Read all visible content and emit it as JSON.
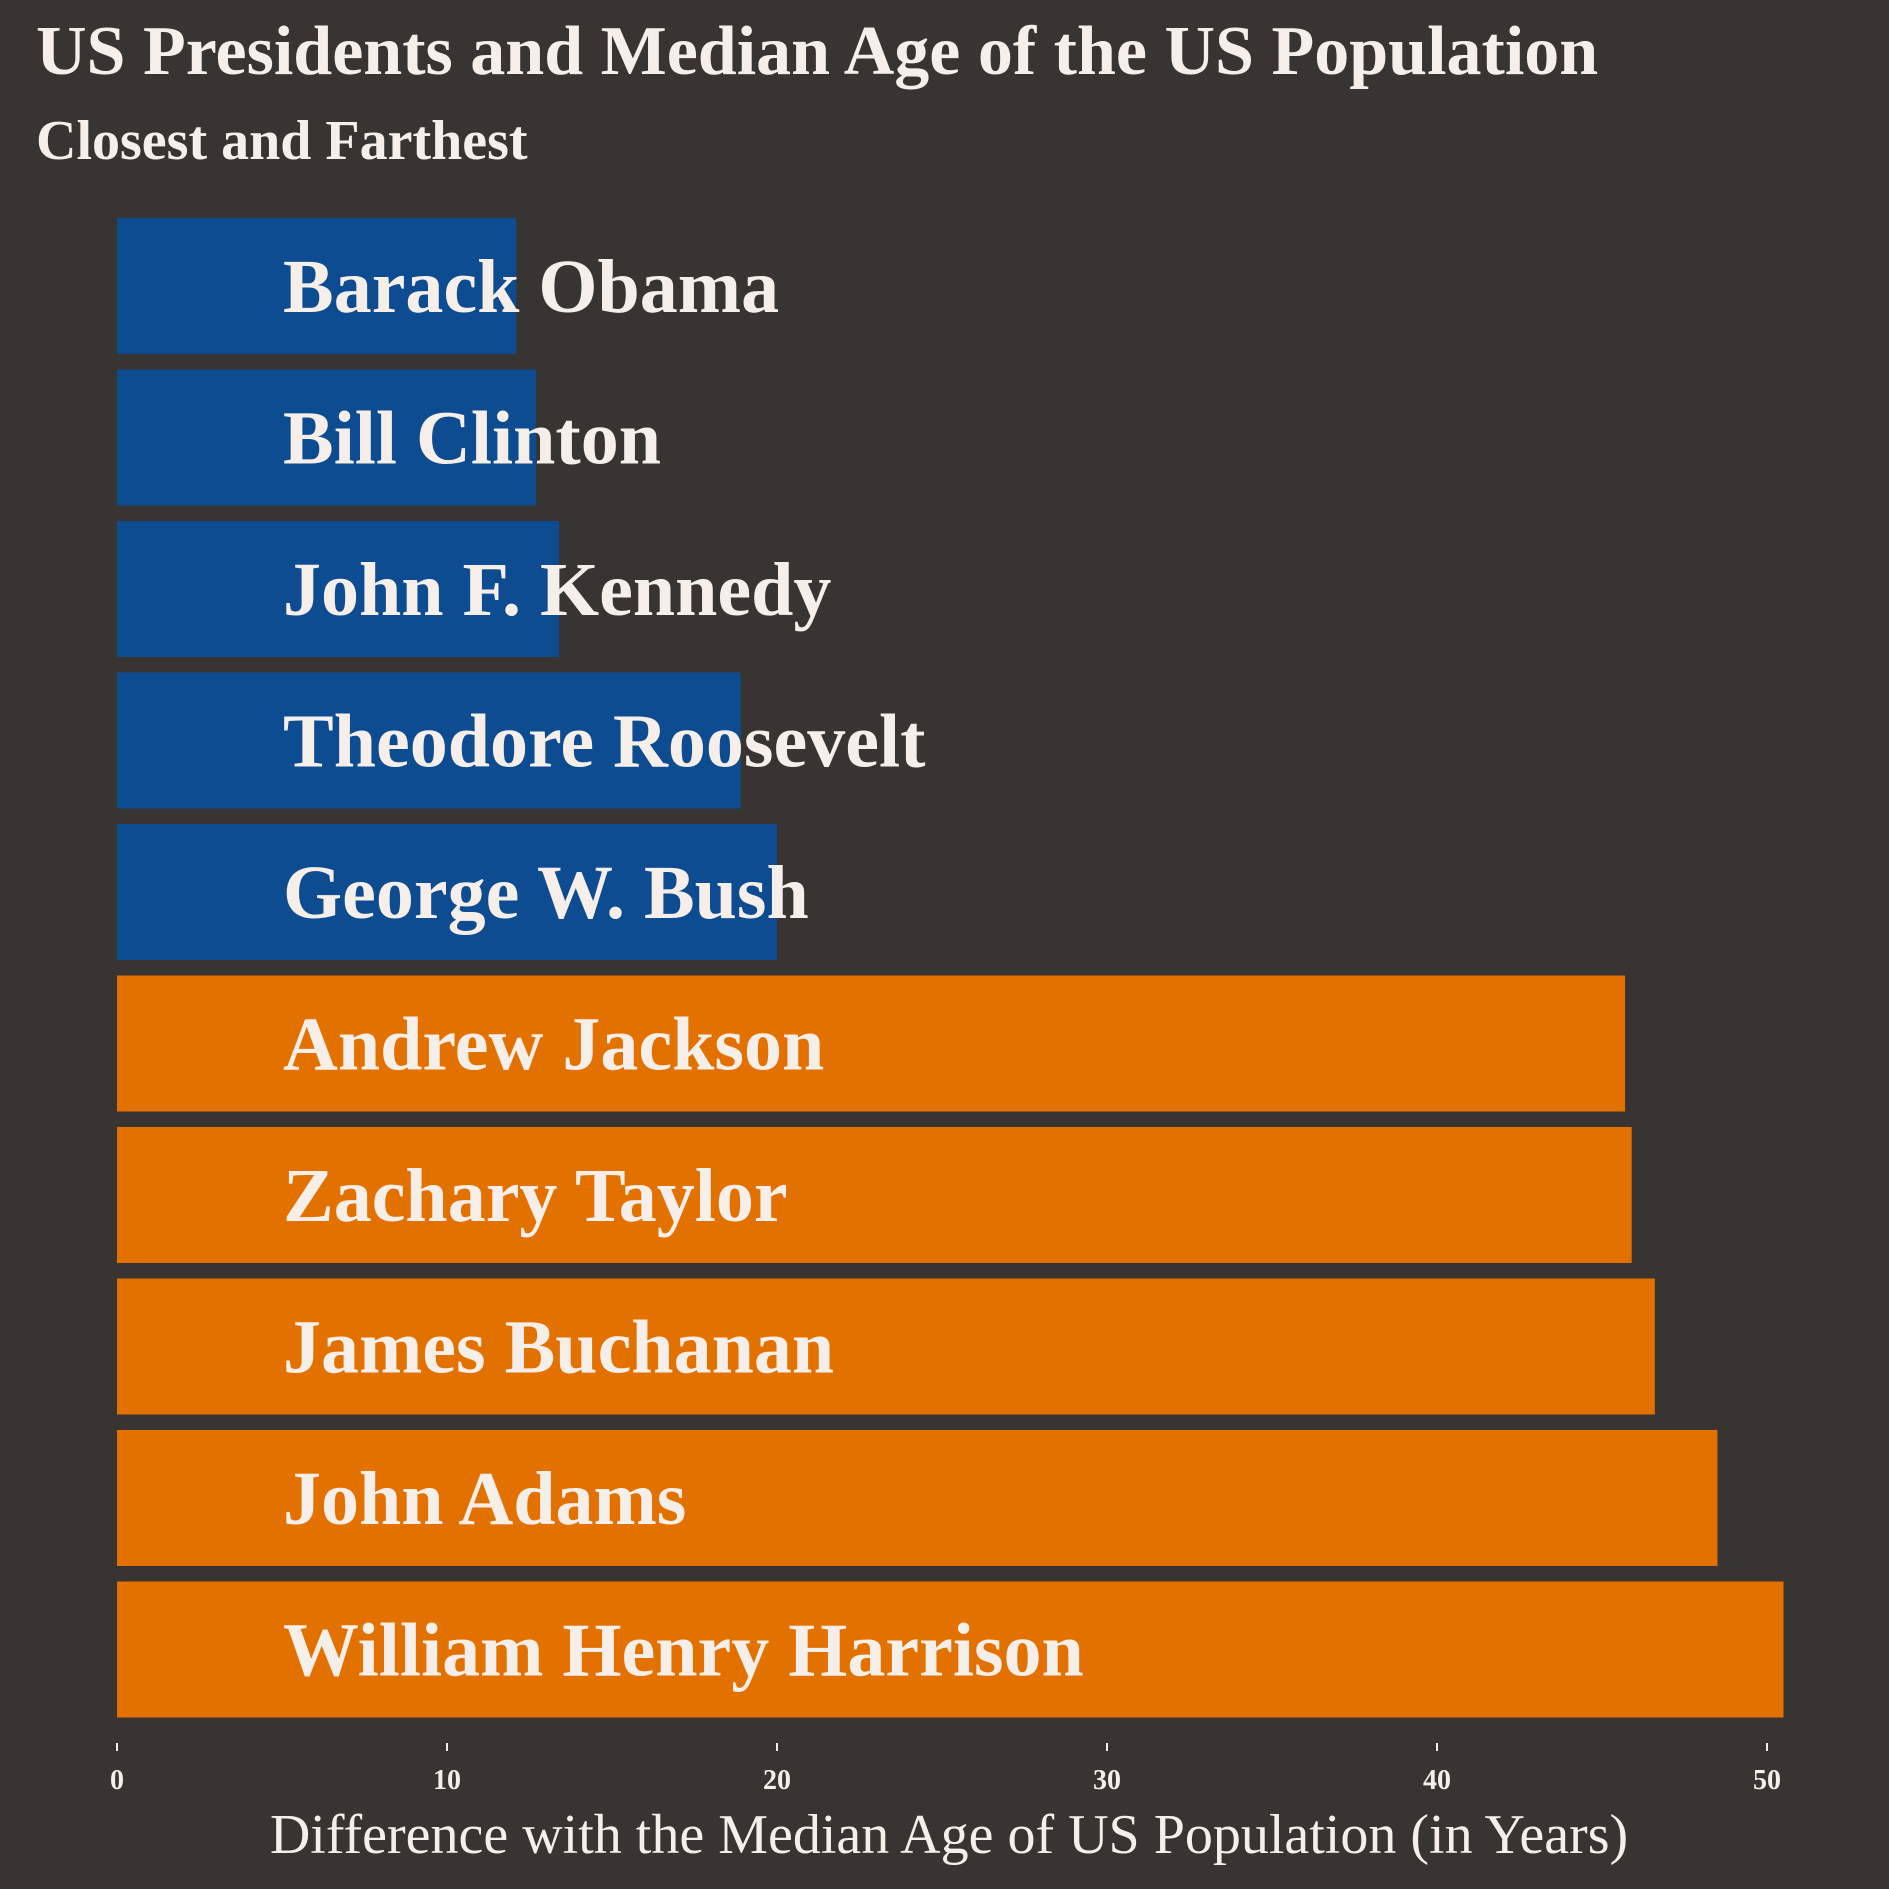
{
  "chart_data": {
    "type": "bar",
    "orientation": "horizontal",
    "title": "US Presidents and Median Age of the US Population",
    "subtitle": "Closest and Farthest",
    "xlabel": "Difference with the Median Age of US Population (in Years)",
    "ylabel": "",
    "xlim": [
      0,
      52
    ],
    "x_ticks": [
      0,
      10,
      20,
      30,
      40,
      50
    ],
    "grid": false,
    "legend": "none",
    "categories": [
      "Barack Obama",
      "Bill Clinton",
      "John F. Kennedy",
      "Theodore Roosevelt",
      "George W. Bush",
      "Andrew Jackson",
      "Zachary Taylor",
      "James Buchanan",
      "John Adams",
      "William Henry Harrison"
    ],
    "values": [
      12.1,
      12.7,
      13.4,
      18.9,
      20.0,
      45.7,
      45.9,
      46.6,
      48.5,
      50.5
    ],
    "groups": [
      "closest",
      "closest",
      "closest",
      "closest",
      "closest",
      "farthest",
      "farthest",
      "farthest",
      "farthest",
      "farthest"
    ],
    "colors": {
      "closest": "#0e4c92",
      "farthest": "#e37100",
      "background": "#383431",
      "text": "#f6efe9"
    }
  }
}
